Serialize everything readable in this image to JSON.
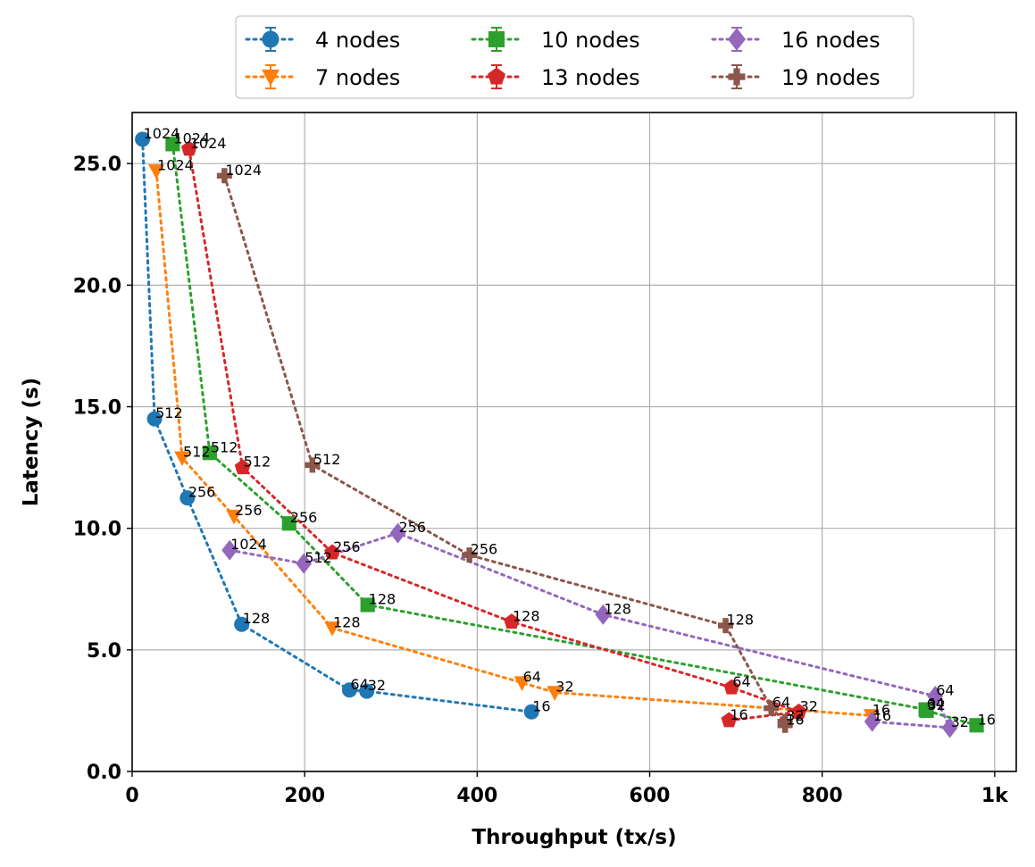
{
  "chart_data": {
    "type": "line",
    "title": "",
    "xlabel": "Throughput (tx/s)",
    "ylabel": "Latency (s)",
    "xlim": [
      0,
      1025
    ],
    "ylim": [
      0,
      27.1
    ],
    "xticks": [
      0,
      200,
      400,
      600,
      800,
      1000
    ],
    "xtick_labels": [
      "0",
      "200",
      "400",
      "600",
      "800",
      "1k"
    ],
    "yticks": [
      0,
      5,
      10,
      15,
      20,
      25
    ],
    "ytick_labels": [
      "0.0",
      "5.0",
      "10.0",
      "15.0",
      "20.0",
      "25.0"
    ],
    "grid": true,
    "legend_position": "top-center (outside, 3 columns)",
    "series": [
      {
        "name": "4 nodes",
        "color": "#1f77b4",
        "marker": "circle",
        "points": [
          {
            "label": "1024",
            "x": 12,
            "y": 26.0
          },
          {
            "label": "512",
            "x": 26,
            "y": 14.5
          },
          {
            "label": "256",
            "x": 64,
            "y": 11.25
          },
          {
            "label": "128",
            "x": 127,
            "y": 6.05
          },
          {
            "label": "64",
            "x": 252,
            "y": 3.35
          },
          {
            "label": "32",
            "x": 272,
            "y": 3.3
          },
          {
            "label": "16",
            "x": 463,
            "y": 2.45
          }
        ]
      },
      {
        "name": "7 nodes",
        "color": "#ff7f0e",
        "marker": "triangle-down",
        "points": [
          {
            "label": "1024",
            "x": 28,
            "y": 24.7
          },
          {
            "label": "512",
            "x": 58,
            "y": 12.9
          },
          {
            "label": "256",
            "x": 118,
            "y": 10.5
          },
          {
            "label": "128",
            "x": 232,
            "y": 5.9
          },
          {
            "label": "64",
            "x": 452,
            "y": 3.65
          },
          {
            "label": "32",
            "x": 490,
            "y": 3.25
          },
          {
            "label": "16",
            "x": 857,
            "y": 2.3
          }
        ]
      },
      {
        "name": "10 nodes",
        "color": "#2ca02c",
        "marker": "square",
        "points": [
          {
            "label": "1024",
            "x": 47,
            "y": 25.8
          },
          {
            "label": "512",
            "x": 90,
            "y": 13.1
          },
          {
            "label": "256",
            "x": 182,
            "y": 10.2
          },
          {
            "label": "128",
            "x": 273,
            "y": 6.85
          },
          {
            "label": "64",
            "x": 920,
            "y": 2.55
          },
          {
            "label": "32",
            "x": 921,
            "y": 2.5
          },
          {
            "label": "16",
            "x": 979,
            "y": 1.9
          }
        ]
      },
      {
        "name": "13 nodes",
        "color": "#d62728",
        "marker": "pentagon",
        "points": [
          {
            "label": "1024",
            "x": 66,
            "y": 25.6
          },
          {
            "label": "512",
            "x": 128,
            "y": 12.5
          },
          {
            "label": "256",
            "x": 232,
            "y": 9.0
          },
          {
            "label": "128",
            "x": 440,
            "y": 6.15
          },
          {
            "label": "64",
            "x": 695,
            "y": 3.45
          },
          {
            "label": "32",
            "x": 773,
            "y": 2.45
          },
          {
            "label": "16",
            "x": 692,
            "y": 2.1
          }
        ]
      },
      {
        "name": "16 nodes",
        "color": "#9467bd",
        "marker": "diamond",
        "points": [
          {
            "label": "1024",
            "x": 113,
            "y": 9.1
          },
          {
            "label": "512",
            "x": 199,
            "y": 8.55
          },
          {
            "label": "256",
            "x": 308,
            "y": 9.8
          },
          {
            "label": "128",
            "x": 546,
            "y": 6.45
          },
          {
            "label": "64",
            "x": 931,
            "y": 3.1
          },
          {
            "label": "32",
            "x": 948,
            "y": 1.8
          },
          {
            "label": "16",
            "x": 858,
            "y": 2.05
          }
        ]
      },
      {
        "name": "19 nodes",
        "color": "#8c564b",
        "marker": "plus",
        "points": [
          {
            "label": "1024",
            "x": 107,
            "y": 24.5
          },
          {
            "label": "512",
            "x": 209,
            "y": 12.6
          },
          {
            "label": "256",
            "x": 391,
            "y": 8.9
          },
          {
            "label": "128",
            "x": 688,
            "y": 6.0
          },
          {
            "label": "64",
            "x": 741,
            "y": 2.6
          },
          {
            "label": "32",
            "x": 757,
            "y": 2.05
          },
          {
            "label": "16",
            "x": 757,
            "y": 1.9
          }
        ]
      }
    ]
  }
}
